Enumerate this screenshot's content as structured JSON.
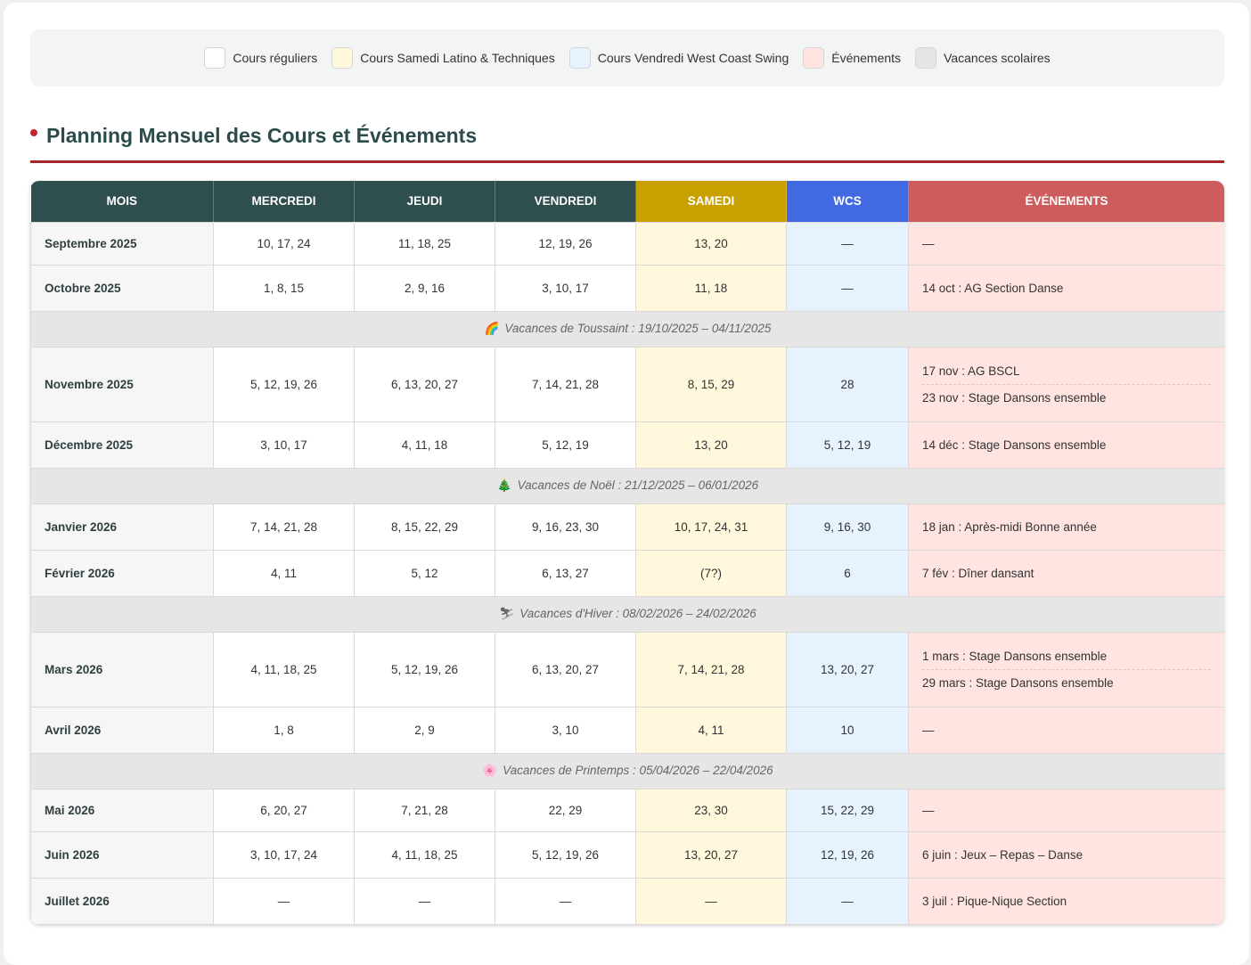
{
  "legend": [
    {
      "label": "Cours réguliers",
      "color": "#ffffff"
    },
    {
      "label": "Cours Samedi Latino & Techniques",
      "color": "#fff8dc"
    },
    {
      "label": "Cours Vendredi West Coast Swing",
      "color": "#e6f2fd"
    },
    {
      "label": "Événements",
      "color": "#ffe4e1"
    },
    {
      "label": "Vacances scolaires",
      "color": "#e6e6e6"
    }
  ],
  "section_title": "Planning Mensuel des Cours et Événements",
  "headers": {
    "mois": "Mois",
    "mercredi": "Mercredi",
    "jeudi": "Jeudi",
    "vendredi": "Vendredi",
    "samedi": "Samedi",
    "wcs": "WCS",
    "evenements": "Événements"
  },
  "rows": [
    {
      "type": "month",
      "month": "Septembre 2025",
      "wed": "10, 17, 24",
      "thu": "11, 18, 25",
      "fri": "12, 19, 26",
      "sat": "13, 20",
      "wcs": "—",
      "events": [
        "—"
      ]
    },
    {
      "type": "month",
      "month": "Octobre 2025",
      "wed": "1, 8, 15",
      "thu": "2, 9, 16",
      "fri": "3, 10, 17",
      "sat": "11, 18",
      "wcs": "—",
      "events": [
        "14 oct : AG Section Danse"
      ]
    },
    {
      "type": "vacation",
      "icon": "rainbow-icon",
      "glyph": "🌈",
      "text": "Vacances de Toussaint : 19/10/2025 – 04/11/2025"
    },
    {
      "type": "month",
      "month": "Novembre 2025",
      "wed": "5, 12, 19, 26",
      "thu": "6, 13, 20, 27",
      "fri": "7, 14, 21, 28",
      "sat": "8, 15, 29",
      "wcs": "28",
      "events": [
        "17 nov : AG BSCL",
        "23 nov : Stage Dansons ensemble"
      ]
    },
    {
      "type": "month",
      "month": "Décembre 2025",
      "wed": "3, 10, 17",
      "thu": "4, 11, 18",
      "fri": "5, 12, 19",
      "sat": "13, 20",
      "wcs": "5, 12, 19",
      "events": [
        "14 déc : Stage Dansons ensemble"
      ]
    },
    {
      "type": "vacation",
      "icon": "christmas-tree-icon",
      "glyph": "🎄",
      "text": "Vacances de Noël : 21/12/2025 – 06/01/2026"
    },
    {
      "type": "month",
      "month": "Janvier 2026",
      "wed": "7, 14, 21, 28",
      "thu": "8, 15, 22, 29",
      "fri": "9, 16, 23, 30",
      "sat": "10, 17, 24, 31",
      "wcs": "9, 16, 30",
      "events": [
        "18 jan : Après-midi Bonne année"
      ]
    },
    {
      "type": "month",
      "month": "Février 2026",
      "wed": "4, 11",
      "thu": "5, 12",
      "fri": "6, 13, 27",
      "sat": "(7?)",
      "wcs": "6",
      "events": [
        "7 fév : Dîner dansant"
      ]
    },
    {
      "type": "vacation",
      "icon": "skier-icon",
      "glyph": "⛷",
      "text": "Vacances d'Hiver : 08/02/2026 – 24/02/2026"
    },
    {
      "type": "month",
      "month": "Mars 2026",
      "wed": "4, 11, 18, 25",
      "thu": "5, 12, 19, 26",
      "fri": "6, 13, 20, 27",
      "sat": "7, 14, 21, 28",
      "wcs": "13, 20, 27",
      "events": [
        "1 mars : Stage Dansons ensemble",
        "29 mars : Stage Dansons ensemble"
      ]
    },
    {
      "type": "month",
      "month": "Avril 2026",
      "wed": "1, 8",
      "thu": "2, 9",
      "fri": "3, 10",
      "sat": "4, 11",
      "wcs": "10",
      "events": [
        "—"
      ]
    },
    {
      "type": "vacation",
      "icon": "flower-icon",
      "glyph": "🌸",
      "text": "Vacances de Printemps : 05/04/2026 – 22/04/2026"
    },
    {
      "type": "month",
      "month": "Mai 2026",
      "wed": "6, 20, 27",
      "thu": "7, 21, 28",
      "fri": "22, 29",
      "sat": "23, 30",
      "wcs": "15, 22, 29",
      "events": [
        "—"
      ]
    },
    {
      "type": "month",
      "month": "Juin 2026",
      "wed": "3, 10, 17, 24",
      "thu": "4, 11, 18, 25",
      "fri": "5, 12, 19, 26",
      "sat": "13, 20, 27",
      "wcs": "12, 19, 26",
      "events": [
        "6 juin : Jeux – Repas – Danse"
      ]
    },
    {
      "type": "month",
      "month": "Juillet 2026",
      "wed": "—",
      "thu": "—",
      "fri": "—",
      "sat": "—",
      "wcs": "—",
      "events": [
        "3 juil : Pique-Nique Section"
      ]
    }
  ]
}
